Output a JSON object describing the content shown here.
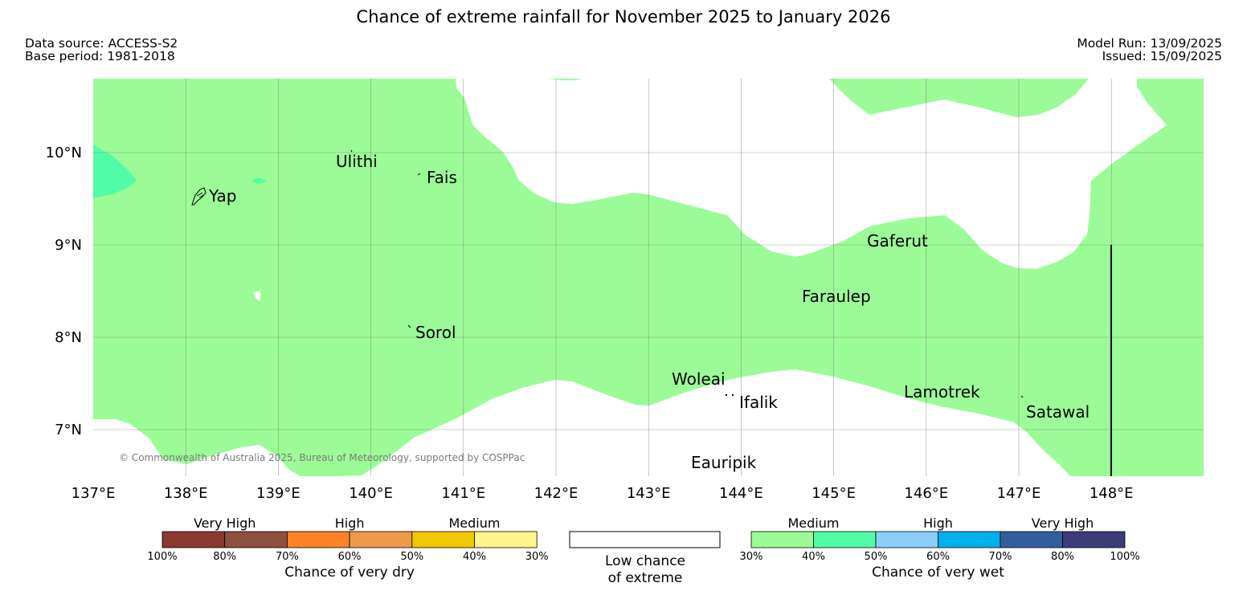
{
  "header": {
    "title": "Chance of extreme rainfall for November 2025 to January 2026",
    "data_source": "Data source: ACCESS-S2",
    "base_period": "Base period: 1981-2018",
    "model_run": "Model Run: 13/09/2025",
    "issued": "Issued: 15/09/2025"
  },
  "map": {
    "lon_labels": [
      "137°E",
      "138°E",
      "139°E",
      "140°E",
      "141°E",
      "142°E",
      "143°E",
      "144°E",
      "145°E",
      "146°E",
      "147°E",
      "148°E"
    ],
    "lat_labels": [
      "10°N",
      "9°N",
      "8°N",
      "7°N"
    ],
    "places": {
      "ulithi": "Ulithi",
      "fais": "Fais",
      "yap": "Yap",
      "gaferut": "Gaferut",
      "faraulep": "Faraulep",
      "sorol": "Sorol",
      "woleai": "Woleai",
      "ifalik": "Ifalik",
      "lamotrek": "Lamotrek",
      "satawal": "Satawal",
      "eauripik": "Eauripik"
    },
    "copyright": "© Commonwealth of Australia 2025, Bureau of Meteorology, supported by COSPPac",
    "colors": {
      "medium_wet": "#9bfc97",
      "medium_high_wet": "#52fca6"
    }
  },
  "legend": {
    "dry": {
      "group_labels": [
        "Very High",
        "High",
        "Medium"
      ],
      "ticks": [
        "100%",
        "80%",
        "70%",
        "60%",
        "50%",
        "40%",
        "30%"
      ],
      "colors": [
        "#8b3a31",
        "#8d4f3e",
        "#fd8127",
        "#ee9a4b",
        "#f0c800",
        "#fff68a"
      ],
      "caption": "Chance of very dry"
    },
    "neutral": {
      "caption_line1": "Low chance",
      "caption_line2": "of extreme"
    },
    "wet": {
      "group_labels": [
        "Medium",
        "High",
        "Very High"
      ],
      "ticks": [
        "30%",
        "40%",
        "50%",
        "60%",
        "70%",
        "80%",
        "100%"
      ],
      "colors": [
        "#9bfc97",
        "#52fca6",
        "#89cffa",
        "#00b0ec",
        "#335e9e",
        "#3d3c7a"
      ],
      "caption": "Chance of very wet"
    }
  }
}
